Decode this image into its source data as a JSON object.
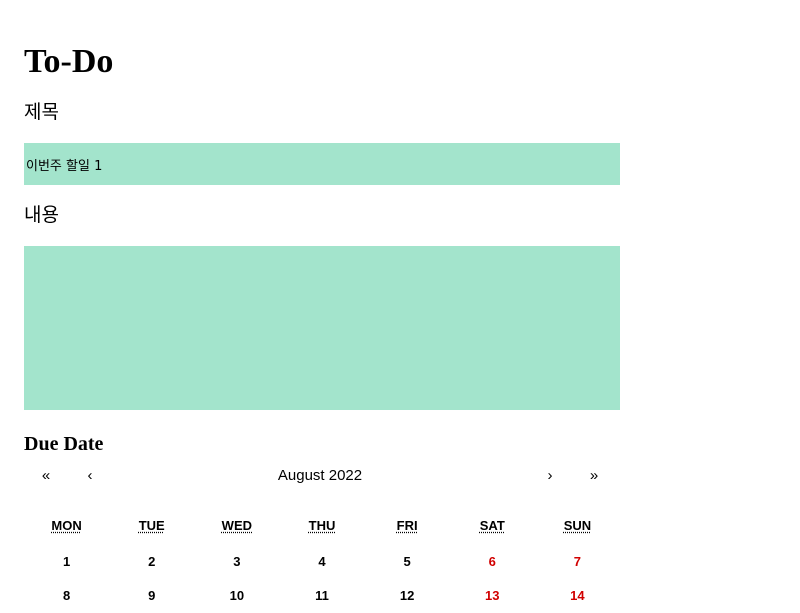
{
  "page_title": "To-Do",
  "form": {
    "title_label": "제목",
    "title_value": "이번주 할일 1",
    "content_label": "내용",
    "content_value": "",
    "due_label": "Due Date"
  },
  "calendar": {
    "prev2": "«",
    "prev": "‹",
    "month_label": "August 2022",
    "next": "›",
    "next2": "»",
    "weekdays": [
      "MON",
      "TUE",
      "WED",
      "THU",
      "FRI",
      "SAT",
      "SUN"
    ],
    "weeks": [
      [
        "1",
        "2",
        "3",
        "4",
        "5",
        "6",
        "7"
      ],
      [
        "8",
        "9",
        "10",
        "11",
        "12",
        "13",
        "14"
      ]
    ],
    "weekend_color": "#d10000"
  },
  "colors": {
    "input_bg": "#a3e4cc"
  }
}
